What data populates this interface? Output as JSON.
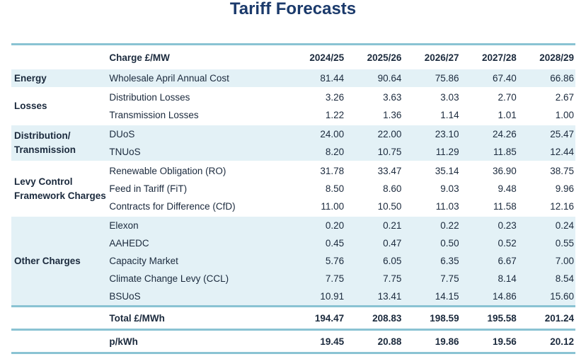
{
  "title": "Tariff Forecasts",
  "header": {
    "charge_label": "Charge £/MW",
    "years": [
      "2024/25",
      "2025/26",
      "2026/27",
      "2027/28",
      "2028/29"
    ]
  },
  "groups": {
    "energy": {
      "label": "Energy",
      "rows": [
        {
          "charge": "Wholesale April Annual Cost",
          "values": [
            "81.44",
            "90.64",
            "75.86",
            "67.40",
            "66.86"
          ]
        }
      ]
    },
    "losses": {
      "label": "Losses",
      "rows": [
        {
          "charge": "Distribution Losses",
          "values": [
            "3.26",
            "3.63",
            "3.03",
            "2.70",
            "2.67"
          ]
        },
        {
          "charge": "Transmission Losses",
          "values": [
            "1.22",
            "1.36",
            "1.14",
            "1.01",
            "1.00"
          ]
        }
      ]
    },
    "distribution": {
      "label_line1": "Distribution/",
      "label_line2": "Transmission",
      "rows": [
        {
          "charge": "DUoS",
          "values": [
            "24.00",
            "22.00",
            "23.10",
            "24.26",
            "25.47"
          ]
        },
        {
          "charge": "TNUoS",
          "values": [
            "8.20",
            "10.75",
            "11.29",
            "11.85",
            "12.44"
          ]
        }
      ]
    },
    "levy": {
      "label_line1": "Levy Control",
      "label_line2": "Framework Charges",
      "rows": [
        {
          "charge": "Renewable Obligation (RO)",
          "values": [
            "31.78",
            "33.47",
            "35.14",
            "36.90",
            "38.75"
          ]
        },
        {
          "charge": "Feed in Tariff (FiT)",
          "values": [
            "8.50",
            "8.60",
            "9.03",
            "9.48",
            "9.96"
          ]
        },
        {
          "charge": "Contracts for Difference (CfD)",
          "values": [
            "11.00",
            "10.50",
            "11.03",
            "11.58",
            "12.16"
          ]
        }
      ]
    },
    "other": {
      "label": "Other Charges",
      "rows": [
        {
          "charge": "Elexon",
          "values": [
            "0.20",
            "0.21",
            "0.22",
            "0.23",
            "0.24"
          ]
        },
        {
          "charge": "AAHEDC",
          "values": [
            "0.45",
            "0.47",
            "0.50",
            "0.52",
            "0.55"
          ]
        },
        {
          "charge": "Capacity Market",
          "values": [
            "5.76",
            "6.05",
            "6.35",
            "6.67",
            "7.00"
          ]
        },
        {
          "charge": "Climate Change Levy (CCL)",
          "values": [
            "7.75",
            "7.75",
            "7.75",
            "8.14",
            "8.54"
          ]
        },
        {
          "charge": "BSUoS",
          "values": [
            "10.91",
            "13.41",
            "14.15",
            "14.86",
            "15.60"
          ]
        }
      ]
    }
  },
  "total": {
    "label": "Total £/MWh",
    "values": [
      "194.47",
      "208.83",
      "198.59",
      "195.58",
      "201.24"
    ]
  },
  "pkwh": {
    "label": "p/kWh",
    "values": [
      "19.45",
      "20.88",
      "19.86",
      "19.56",
      "20.12"
    ]
  },
  "colors": {
    "title": "#1b3a6b",
    "rule": "#8ac3d3",
    "shade": "#e3f1f6"
  }
}
